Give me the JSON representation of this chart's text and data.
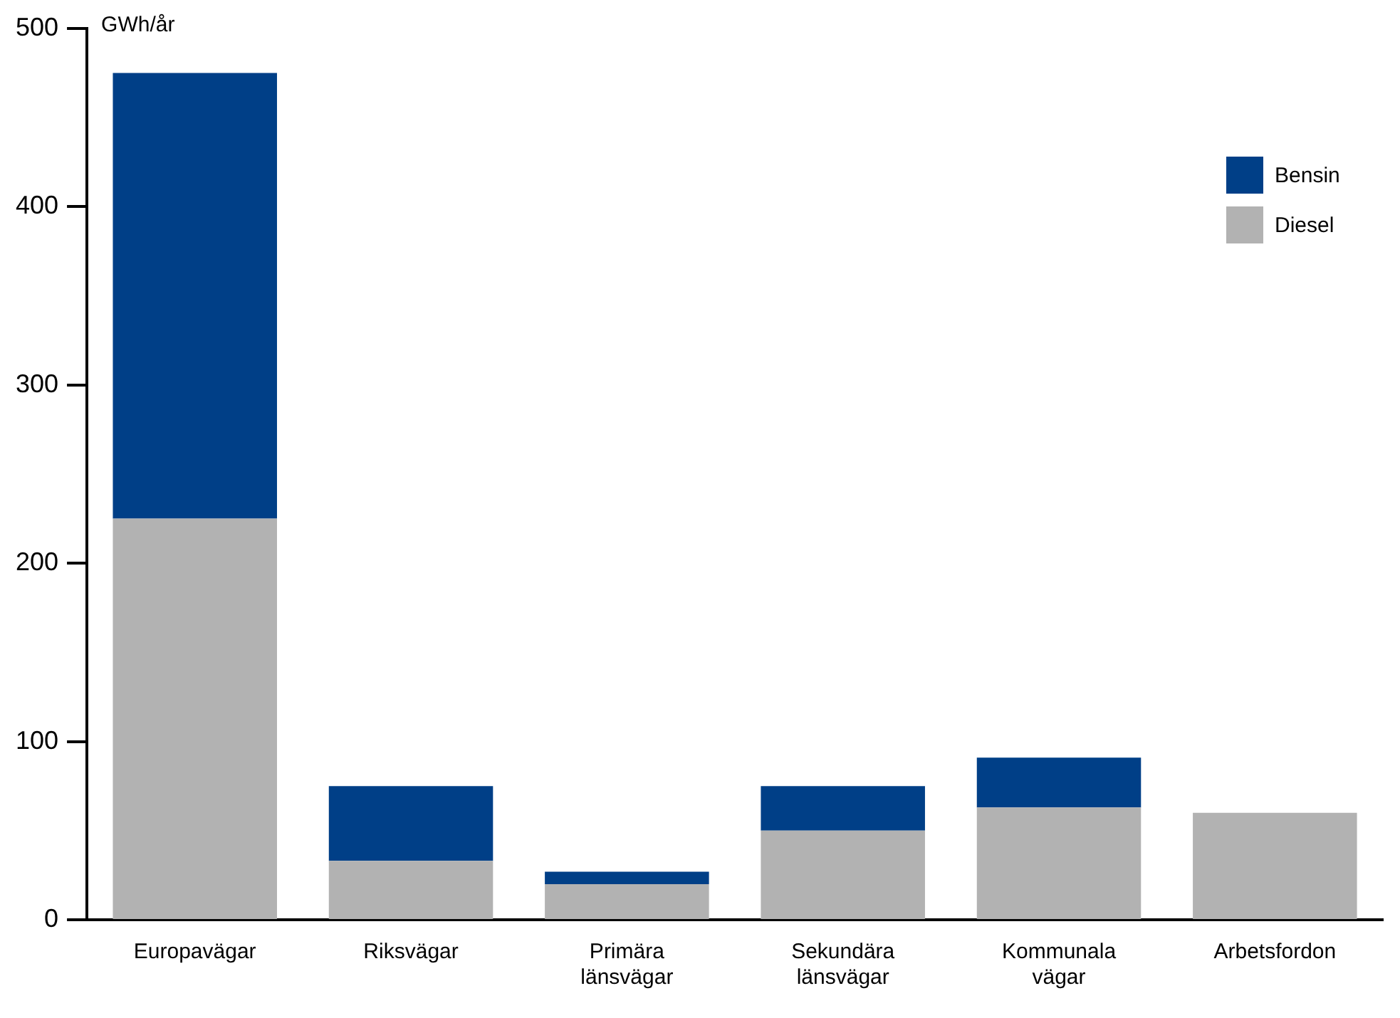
{
  "chart_data": {
    "type": "bar",
    "stacked": true,
    "ylabel": "GWh/år",
    "categories": [
      "Europavägar",
      "Riksvägar",
      "Primära länsvägar",
      "Sekundära länsvägar",
      "Kommunala vägar",
      "Arbetsfordon"
    ],
    "series": [
      {
        "name": "Diesel",
        "color": "#b2b2b2",
        "values": [
          225,
          33,
          20,
          50,
          63,
          60
        ]
      },
      {
        "name": "Bensin",
        "color": "#003f87",
        "values": [
          250,
          42,
          7,
          25,
          28,
          null
        ]
      }
    ],
    "ylim": [
      0,
      500
    ],
    "yticks": [
      0,
      100,
      200,
      300,
      400,
      500
    ],
    "grid": false,
    "legend": "top right"
  }
}
